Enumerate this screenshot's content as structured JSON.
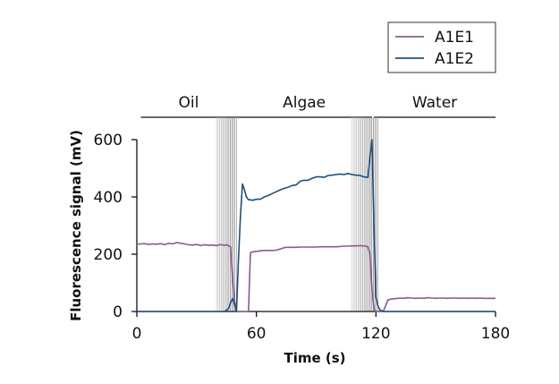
{
  "chart_data": {
    "type": "line",
    "xlabel": "Time (s)",
    "ylabel": "Fluorescence signal (mV)",
    "xlim": [
      0,
      180
    ],
    "ylim": [
      0,
      600
    ],
    "xticks": [
      0,
      60,
      120,
      180
    ],
    "yticks": [
      0,
      200,
      400,
      600
    ],
    "grid": false,
    "legend_position": "top-right",
    "regions": [
      {
        "label": "Oil",
        "start": 2,
        "end": 50
      },
      {
        "label": "Algae",
        "start": 50,
        "end": 118
      },
      {
        "label": "Water",
        "start": 119,
        "end": 180
      }
    ],
    "transitions": [
      {
        "start": 40,
        "end": 50
      },
      {
        "start": 108,
        "end": 121
      }
    ],
    "series": [
      {
        "name": "A1E1",
        "color": "#8b5a8b",
        "x": [
          0,
          2,
          4,
          6,
          8,
          10,
          12,
          14,
          16,
          18,
          20,
          22,
          24,
          26,
          28,
          30,
          32,
          34,
          36,
          38,
          40,
          42,
          44,
          45,
          46,
          47,
          48,
          49,
          50,
          51,
          52,
          53,
          54,
          55,
          56,
          57,
          58,
          60,
          62,
          64,
          66,
          68,
          70,
          72,
          74,
          76,
          78,
          80,
          82,
          84,
          86,
          88,
          90,
          92,
          94,
          96,
          98,
          100,
          102,
          104,
          106,
          108,
          110,
          112,
          114,
          115,
          116,
          117,
          118,
          119,
          120,
          121,
          122,
          123,
          124,
          126,
          128,
          130,
          132,
          134,
          136,
          138,
          140,
          142,
          144,
          146,
          148,
          150,
          152,
          154,
          156,
          158,
          160,
          162,
          164,
          166,
          168,
          170,
          172,
          174,
          176,
          178,
          180
        ],
        "y": [
          235,
          236,
          237,
          234,
          236,
          235,
          237,
          233,
          238,
          236,
          241,
          238,
          236,
          233,
          232,
          234,
          230,
          233,
          231,
          232,
          230,
          234,
          231,
          233,
          230,
          226,
          120,
          40,
          0,
          0,
          0,
          0,
          0,
          0,
          0,
          205,
          208,
          210,
          212,
          213,
          213,
          213,
          214,
          218,
          223,
          224,
          224,
          224,
          225,
          225,
          225,
          225,
          225,
          226,
          226,
          226,
          226,
          226,
          227,
          228,
          228,
          229,
          229,
          230,
          229,
          228,
          225,
          200,
          80,
          10,
          0,
          0,
          0,
          0,
          5,
          40,
          44,
          45,
          47,
          46,
          48,
          47,
          46,
          47,
          46,
          48,
          47,
          46,
          47,
          47,
          46,
          47,
          47,
          46,
          47,
          46,
          47,
          46,
          47,
          46,
          46,
          46,
          46
        ]
      },
      {
        "name": "A1E2",
        "color": "#1f4e79",
        "x": [
          0,
          5,
          10,
          15,
          20,
          25,
          30,
          35,
          40,
          44,
          46,
          47,
          48,
          49,
          50,
          51,
          52,
          53,
          54,
          55,
          56,
          57,
          58,
          59,
          60,
          62,
          64,
          66,
          68,
          70,
          72,
          74,
          76,
          78,
          80,
          82,
          84,
          86,
          88,
          90,
          92,
          94,
          96,
          98,
          100,
          102,
          104,
          106,
          108,
          110,
          112,
          114,
          115,
          116,
          117,
          118,
          119,
          120,
          121,
          122,
          124,
          128,
          135,
          140,
          150,
          160,
          170,
          180
        ],
        "y": [
          0,
          0,
          0,
          0,
          0,
          0,
          0,
          0,
          0,
          0,
          10,
          30,
          45,
          25,
          0,
          180,
          330,
          445,
          425,
          400,
          390,
          390,
          388,
          390,
          392,
          392,
          400,
          405,
          412,
          418,
          425,
          430,
          434,
          440,
          442,
          455,
          458,
          458,
          465,
          470,
          470,
          468,
          475,
          476,
          478,
          480,
          478,
          482,
          478,
          476,
          475,
          470,
          469,
          468,
          540,
          600,
          300,
          50,
          20,
          5,
          0,
          0,
          0,
          0,
          0,
          0,
          0,
          0
        ]
      }
    ]
  }
}
